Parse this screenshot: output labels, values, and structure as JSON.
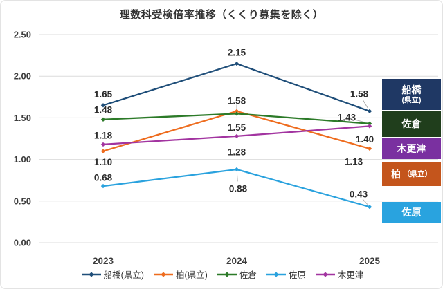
{
  "chart_data": {
    "type": "line",
    "title": "理数科受検倍率推移（くくり募集を除く）",
    "x_labels": [
      "2023",
      "2024",
      "2025"
    ],
    "y_ticks": [
      "2.50",
      "2.00",
      "1.50",
      "1.00",
      "0.50",
      "0.00"
    ],
    "y_tick_values": [
      2.5,
      2.0,
      1.5,
      1.0,
      0.5,
      0.0
    ],
    "ylim": [
      0,
      2.5
    ],
    "grid": true,
    "legend_position": "bottom",
    "series": [
      {
        "name": "船橋(県立)",
        "color": "#1F4E79",
        "values": [
          1.65,
          2.15,
          1.58
        ],
        "labels": [
          "1.65",
          "2.15",
          "1.58"
        ],
        "label_offsets": [
          [
            0,
            -16
          ],
          [
            0,
            -16
          ],
          [
            -15,
            -25
          ]
        ],
        "leaders": [
          false,
          false,
          true
        ]
      },
      {
        "name": "柏(県立)",
        "color": "#EE6C1E",
        "values": [
          1.1,
          1.58,
          1.13
        ],
        "labels": [
          "1.10",
          "1.58",
          "1.13"
        ],
        "label_offsets": [
          [
            0,
            16
          ],
          [
            0,
            -15
          ],
          [
            -23,
            19
          ]
        ],
        "leaders": [
          false,
          true,
          false
        ]
      },
      {
        "name": "佐倉",
        "color": "#2C7A28",
        "values": [
          1.48,
          1.55,
          1.43
        ],
        "labels": [
          "1.48",
          "1.55",
          "1.43"
        ],
        "label_offsets": [
          [
            0,
            -14
          ],
          [
            0,
            20
          ],
          [
            -33,
            -9
          ]
        ],
        "leaders": [
          false,
          false,
          true
        ]
      },
      {
        "name": "佐原",
        "color": "#2AA2DE",
        "values": [
          0.68,
          0.88,
          0.43
        ],
        "labels": [
          "0.68",
          "0.88",
          "0.43"
        ],
        "label_offsets": [
          [
            0,
            -12
          ],
          [
            2,
            28
          ],
          [
            -16,
            -18
          ]
        ],
        "leaders": [
          false,
          true,
          true
        ]
      },
      {
        "name": "木更津",
        "color": "#A234A0",
        "values": [
          1.18,
          1.28,
          1.4
        ],
        "labels": [
          "1.18",
          "1.28",
          "1.40"
        ],
        "label_offsets": [
          [
            0,
            -13
          ],
          [
            0,
            23
          ],
          [
            -7,
            19
          ]
        ],
        "leaders": [
          false,
          false,
          false
        ]
      }
    ]
  },
  "side_boxes": [
    {
      "label": "船橋",
      "sublabel": "(県立)",
      "color": "#1F3864"
    },
    {
      "label": "佐倉",
      "sublabel": "",
      "color": "#203E1C"
    },
    {
      "label": "木更津",
      "sublabel": "",
      "color": "#7A30A0"
    },
    {
      "label": "柏",
      "sublabel": "（県立）",
      "color": "#C4551C"
    },
    {
      "label": "佐原",
      "sublabel": "",
      "color": "#29A3DF"
    }
  ]
}
